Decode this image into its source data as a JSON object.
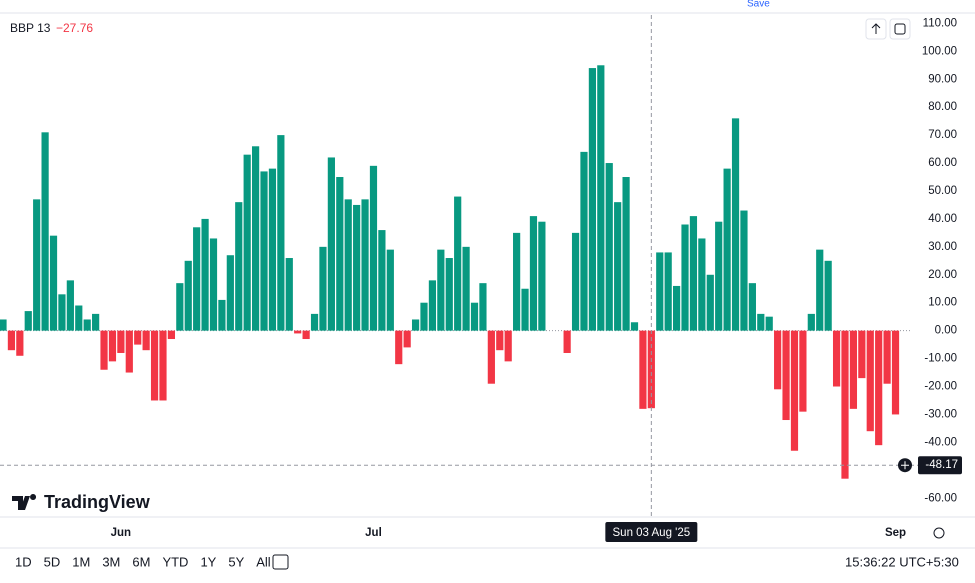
{
  "chart_data": {
    "type": "bar",
    "title": "BBP 13",
    "categories": [
      null,
      null,
      null,
      null,
      null,
      null,
      null,
      null,
      null,
      null,
      null,
      null,
      null,
      null,
      "Jun",
      null,
      null,
      null,
      null,
      null,
      null,
      null,
      null,
      null,
      null,
      null,
      null,
      null,
      null,
      null,
      null,
      null,
      null,
      null,
      null,
      null,
      null,
      null,
      null,
      null,
      null,
      null,
      null,
      null,
      "Jul",
      null,
      null,
      null,
      null,
      null,
      null,
      null,
      null,
      null,
      null,
      null,
      null,
      null,
      null,
      null,
      null,
      null,
      null,
      null,
      null,
      null,
      null,
      null,
      null,
      null,
      null,
      null,
      null,
      null,
      null,
      null,
      null,
      "Sun 03 Aug '25",
      null,
      null,
      null,
      null,
      null,
      null,
      null,
      null,
      null,
      null,
      null,
      null,
      null,
      null,
      null,
      null,
      null,
      null,
      null,
      null,
      null,
      null,
      null,
      null,
      null,
      null,
      null,
      null,
      "Sep"
    ],
    "values": [
      4,
      -7,
      -9,
      7,
      47,
      71,
      34,
      13,
      18,
      9,
      4,
      6,
      -14,
      -11,
      -8,
      -15,
      -5,
      -7,
      -25,
      -25,
      -3,
      17,
      25,
      37,
      40,
      33,
      11,
      27,
      46,
      63,
      66,
      57,
      58,
      70,
      26,
      -1,
      -3,
      6,
      30,
      62,
      55,
      47,
      45,
      47,
      59,
      36,
      29,
      -12,
      -6,
      4,
      10,
      18,
      29,
      26,
      48,
      30,
      10,
      17,
      -19,
      -7,
      -11,
      35,
      15,
      41,
      39,
      0,
      0,
      -8,
      35,
      64,
      94,
      95,
      60,
      46,
      55,
      3,
      -28,
      -27.76,
      28,
      28,
      16,
      38,
      41,
      33,
      20,
      39,
      58,
      76,
      43,
      17,
      6,
      5,
      -21,
      -32,
      -43,
      -29,
      6,
      29,
      25,
      -20,
      -53,
      -28,
      -17,
      -36,
      -41,
      -19,
      -30
    ],
    "value_labels": [
      null,
      null,
      null,
      null,
      null,
      null,
      null,
      null,
      null,
      null,
      null,
      null,
      null,
      null,
      null,
      null,
      null,
      null,
      null,
      null,
      null,
      null,
      null,
      null,
      null,
      null,
      null,
      null,
      null,
      null,
      null,
      null,
      null,
      null,
      null,
      null,
      null,
      null,
      null,
      null,
      null,
      null,
      null,
      null,
      null,
      null,
      null,
      null,
      null,
      null,
      null,
      null,
      null,
      null,
      null,
      null,
      null,
      null,
      null,
      null,
      null,
      null,
      null,
      null,
      null,
      null,
      null,
      null,
      null,
      null,
      null,
      null,
      null,
      null,
      null,
      null,
      null,
      "−27.76",
      null,
      null,
      null,
      null,
      null,
      null,
      null,
      null,
      null,
      null,
      null,
      null,
      null,
      null,
      null,
      null,
      null,
      null,
      null,
      null,
      null,
      null,
      null,
      null,
      null,
      null,
      null,
      null,
      null
    ],
    "positive_color": "#089981",
    "negative_color": "#f23645",
    "ylim": [
      -66,
      113
    ],
    "yticks": [
      {
        "value": 110,
        "label": "110.00"
      },
      {
        "value": 100,
        "label": "100.00"
      },
      {
        "value": 90,
        "label": "90.00"
      },
      {
        "value": 80,
        "label": "80.00"
      },
      {
        "value": 70,
        "label": "70.00"
      },
      {
        "value": 60,
        "label": "60.00"
      },
      {
        "value": 50,
        "label": "50.00"
      },
      {
        "value": 40,
        "label": "40.00"
      },
      {
        "value": 30,
        "label": "30.00"
      },
      {
        "value": 20,
        "label": "20.00"
      },
      {
        "value": 10,
        "label": "10.00"
      },
      {
        "value": 0,
        "label": "0.00"
      },
      {
        "value": -10,
        "label": "-10.00"
      },
      {
        "value": -20,
        "label": "-20.00"
      },
      {
        "value": -30,
        "label": "-30.00"
      },
      {
        "value": -40,
        "label": "-40.00"
      },
      {
        "value": -50,
        "label": "-50.00"
      },
      {
        "value": -60,
        "label": "-60.00"
      }
    ],
    "grid": false,
    "crosshair": {
      "x": 77,
      "y": -48.17
    }
  },
  "ui": {
    "logo": "TradingView",
    "save": "Save",
    "ranges": [
      "1D",
      "5D",
      "1M",
      "3M",
      "6M",
      "YTD",
      "1Y",
      "5Y",
      "All"
    ],
    "clock": "15:36:22 UTC+5:30"
  }
}
